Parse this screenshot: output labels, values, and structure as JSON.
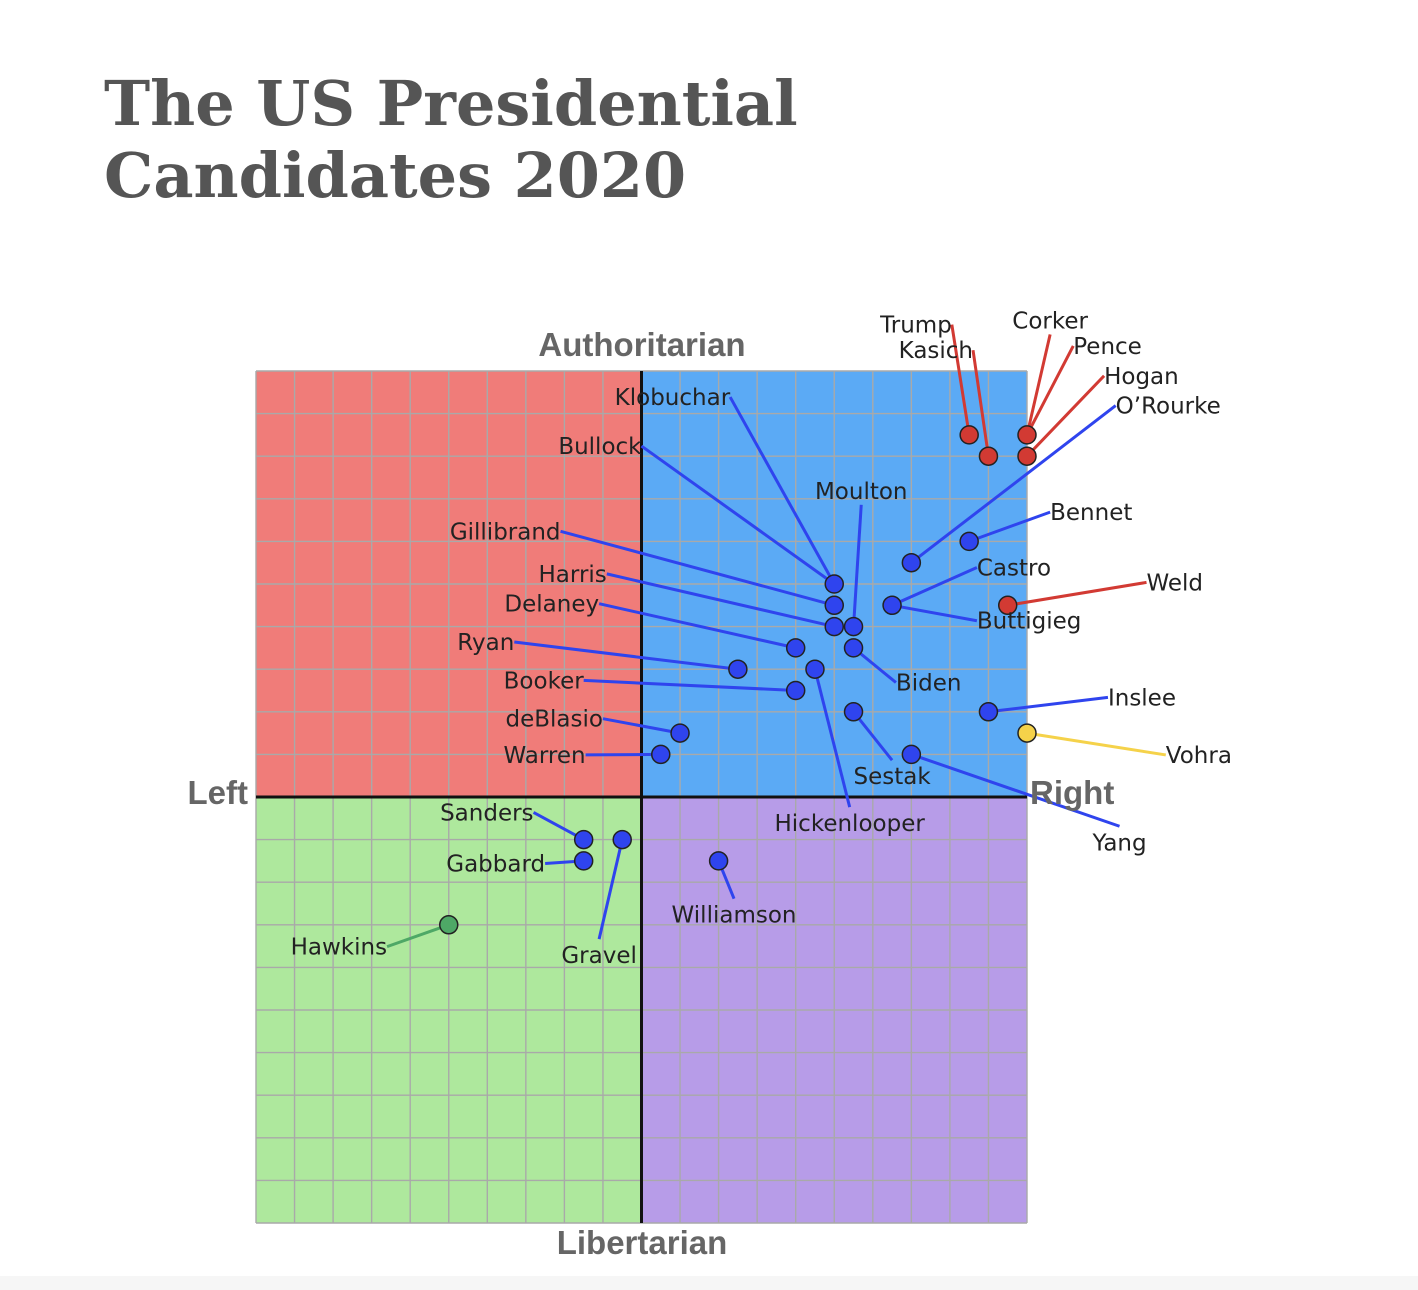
{
  "title_lines": [
    "The US Presidential",
    "Candidates 2020"
  ],
  "chart_data": {
    "type": "scatter",
    "title": "The US Presidential Candidates 2020",
    "xlim": [
      -10,
      10
    ],
    "ylim": [
      -10,
      10
    ],
    "grid": true,
    "axis_labels": {
      "top": "Authoritarian",
      "bottom": "Libertarian",
      "left": "Left",
      "right": "Right"
    },
    "quadrant_colors": {
      "auth_left": "#f07c79",
      "auth_right": "#5baaf5",
      "lib_left": "#aee89d",
      "lib_right": "#b79ce8"
    },
    "party_colors": {
      "Republican": "#d23a33",
      "Democratic": "#2f44ee",
      "Green": "#4ea866",
      "Independent": "#f5d24a"
    },
    "points": [
      {
        "name": "Trump",
        "x": 8.5,
        "y": 8.5,
        "party": "Republican",
        "lx": 8.05,
        "ly": 10.9,
        "anchor": "end"
      },
      {
        "name": "Kasich",
        "x": 9.0,
        "y": 8.0,
        "party": "Republican",
        "lx": 8.6,
        "ly": 10.3,
        "anchor": "end"
      },
      {
        "name": "Corker",
        "x": 10.0,
        "y": 8.5,
        "party": "Republican",
        "lx": 10.6,
        "ly": 11.0,
        "anchor": "middle"
      },
      {
        "name": "Pence",
        "x": 10.0,
        "y": 8.5,
        "party": "Republican",
        "lx": 11.2,
        "ly": 10.4,
        "anchor": "start"
      },
      {
        "name": "Hogan",
        "x": 10.0,
        "y": 8.0,
        "party": "Republican",
        "lx": 12.0,
        "ly": 9.7,
        "anchor": "start"
      },
      {
        "name": "Weld",
        "x": 9.5,
        "y": 4.5,
        "party": "Republican",
        "lx": 13.1,
        "ly": 4.85,
        "anchor": "start"
      },
      {
        "name": "O’Rourke",
        "x": 7.0,
        "y": 5.5,
        "party": "Democratic",
        "lx": 12.3,
        "ly": 9.0,
        "anchor": "start"
      },
      {
        "name": "Bennet",
        "x": 8.5,
        "y": 6.0,
        "party": "Democratic",
        "lx": 10.6,
        "ly": 6.5,
        "anchor": "start"
      },
      {
        "name": "Castro",
        "x": 6.5,
        "y": 4.5,
        "party": "Democratic",
        "lx": 8.7,
        "ly": 5.2,
        "anchor": "start"
      },
      {
        "name": "Buttigieg",
        "x": 6.5,
        "y": 4.5,
        "party": "Democratic",
        "lx": 8.7,
        "ly": 3.95,
        "anchor": "start"
      },
      {
        "name": "Klobuchar",
        "x": 5.0,
        "y": 5.0,
        "party": "Democratic",
        "lx": 2.3,
        "ly": 9.2,
        "anchor": "end"
      },
      {
        "name": "Bullock",
        "x": 5.0,
        "y": 5.0,
        "party": "Democratic",
        "lx": 0.0,
        "ly": 8.05,
        "anchor": "end"
      },
      {
        "name": "Moulton",
        "x": 5.5,
        "y": 4.0,
        "party": "Democratic",
        "lx": 5.7,
        "ly": 7.0,
        "anchor": "middle"
      },
      {
        "name": "Gillibrand",
        "x": 5.0,
        "y": 4.5,
        "party": "Democratic",
        "lx": -2.1,
        "ly": 6.05,
        "anchor": "end"
      },
      {
        "name": "Harris",
        "x": 5.0,
        "y": 4.0,
        "party": "Democratic",
        "lx": -0.9,
        "ly": 5.05,
        "anchor": "end"
      },
      {
        "name": "Delaney",
        "x": 4.0,
        "y": 3.5,
        "party": "Democratic",
        "lx": -1.1,
        "ly": 4.35,
        "anchor": "end"
      },
      {
        "name": "Biden",
        "x": 5.5,
        "y": 3.5,
        "party": "Democratic",
        "lx": 6.6,
        "ly": 2.5,
        "anchor": "start"
      },
      {
        "name": "Ryan",
        "x": 2.5,
        "y": 3.0,
        "party": "Democratic",
        "lx": -3.3,
        "ly": 3.45,
        "anchor": "end"
      },
      {
        "name": "Hickenlooper",
        "x": 4.5,
        "y": 3.0,
        "party": "Democratic",
        "lx": 5.4,
        "ly": -0.8,
        "anchor": "middle"
      },
      {
        "name": "Booker",
        "x": 4.0,
        "y": 2.5,
        "party": "Democratic",
        "lx": -1.5,
        "ly": 2.55,
        "anchor": "end"
      },
      {
        "name": "Inslee",
        "x": 9.0,
        "y": 2.0,
        "party": "Democratic",
        "lx": 12.1,
        "ly": 2.15,
        "anchor": "start"
      },
      {
        "name": "Sestak",
        "x": 5.5,
        "y": 2.0,
        "party": "Democratic",
        "lx": 6.5,
        "ly": 0.3,
        "anchor": "middle"
      },
      {
        "name": "deBlasio",
        "x": 1.0,
        "y": 1.5,
        "party": "Democratic",
        "lx": -1.0,
        "ly": 1.65,
        "anchor": "end"
      },
      {
        "name": "Warren",
        "x": 0.5,
        "y": 1.0,
        "party": "Democratic",
        "lx": -1.45,
        "ly": 0.8,
        "anchor": "end"
      },
      {
        "name": "Yang",
        "x": 7.0,
        "y": 1.0,
        "party": "Democratic",
        "lx": 12.4,
        "ly": -1.25,
        "anchor": "middle"
      },
      {
        "name": "Vohra",
        "x": 10.0,
        "y": 1.5,
        "party": "Independent",
        "lx": 13.6,
        "ly": 0.8,
        "anchor": "start"
      },
      {
        "name": "Sanders",
        "x": -1.5,
        "y": -1.0,
        "party": "Democratic",
        "lx": -2.8,
        "ly": -0.55,
        "anchor": "end"
      },
      {
        "name": "Gabbard",
        "x": -1.5,
        "y": -1.5,
        "party": "Democratic",
        "lx": -2.5,
        "ly": -1.75,
        "anchor": "end"
      },
      {
        "name": "Gravel",
        "x": -0.5,
        "y": -1.0,
        "party": "Democratic",
        "lx": -1.1,
        "ly": -3.9,
        "anchor": "middle"
      },
      {
        "name": "Williamson",
        "x": 2.0,
        "y": -1.5,
        "party": "Democratic",
        "lx": 2.4,
        "ly": -2.95,
        "anchor": "middle"
      },
      {
        "name": "Hawkins",
        "x": -5.0,
        "y": -3.0,
        "party": "Green",
        "lx": -6.6,
        "ly": -3.7,
        "anchor": "end"
      }
    ]
  }
}
